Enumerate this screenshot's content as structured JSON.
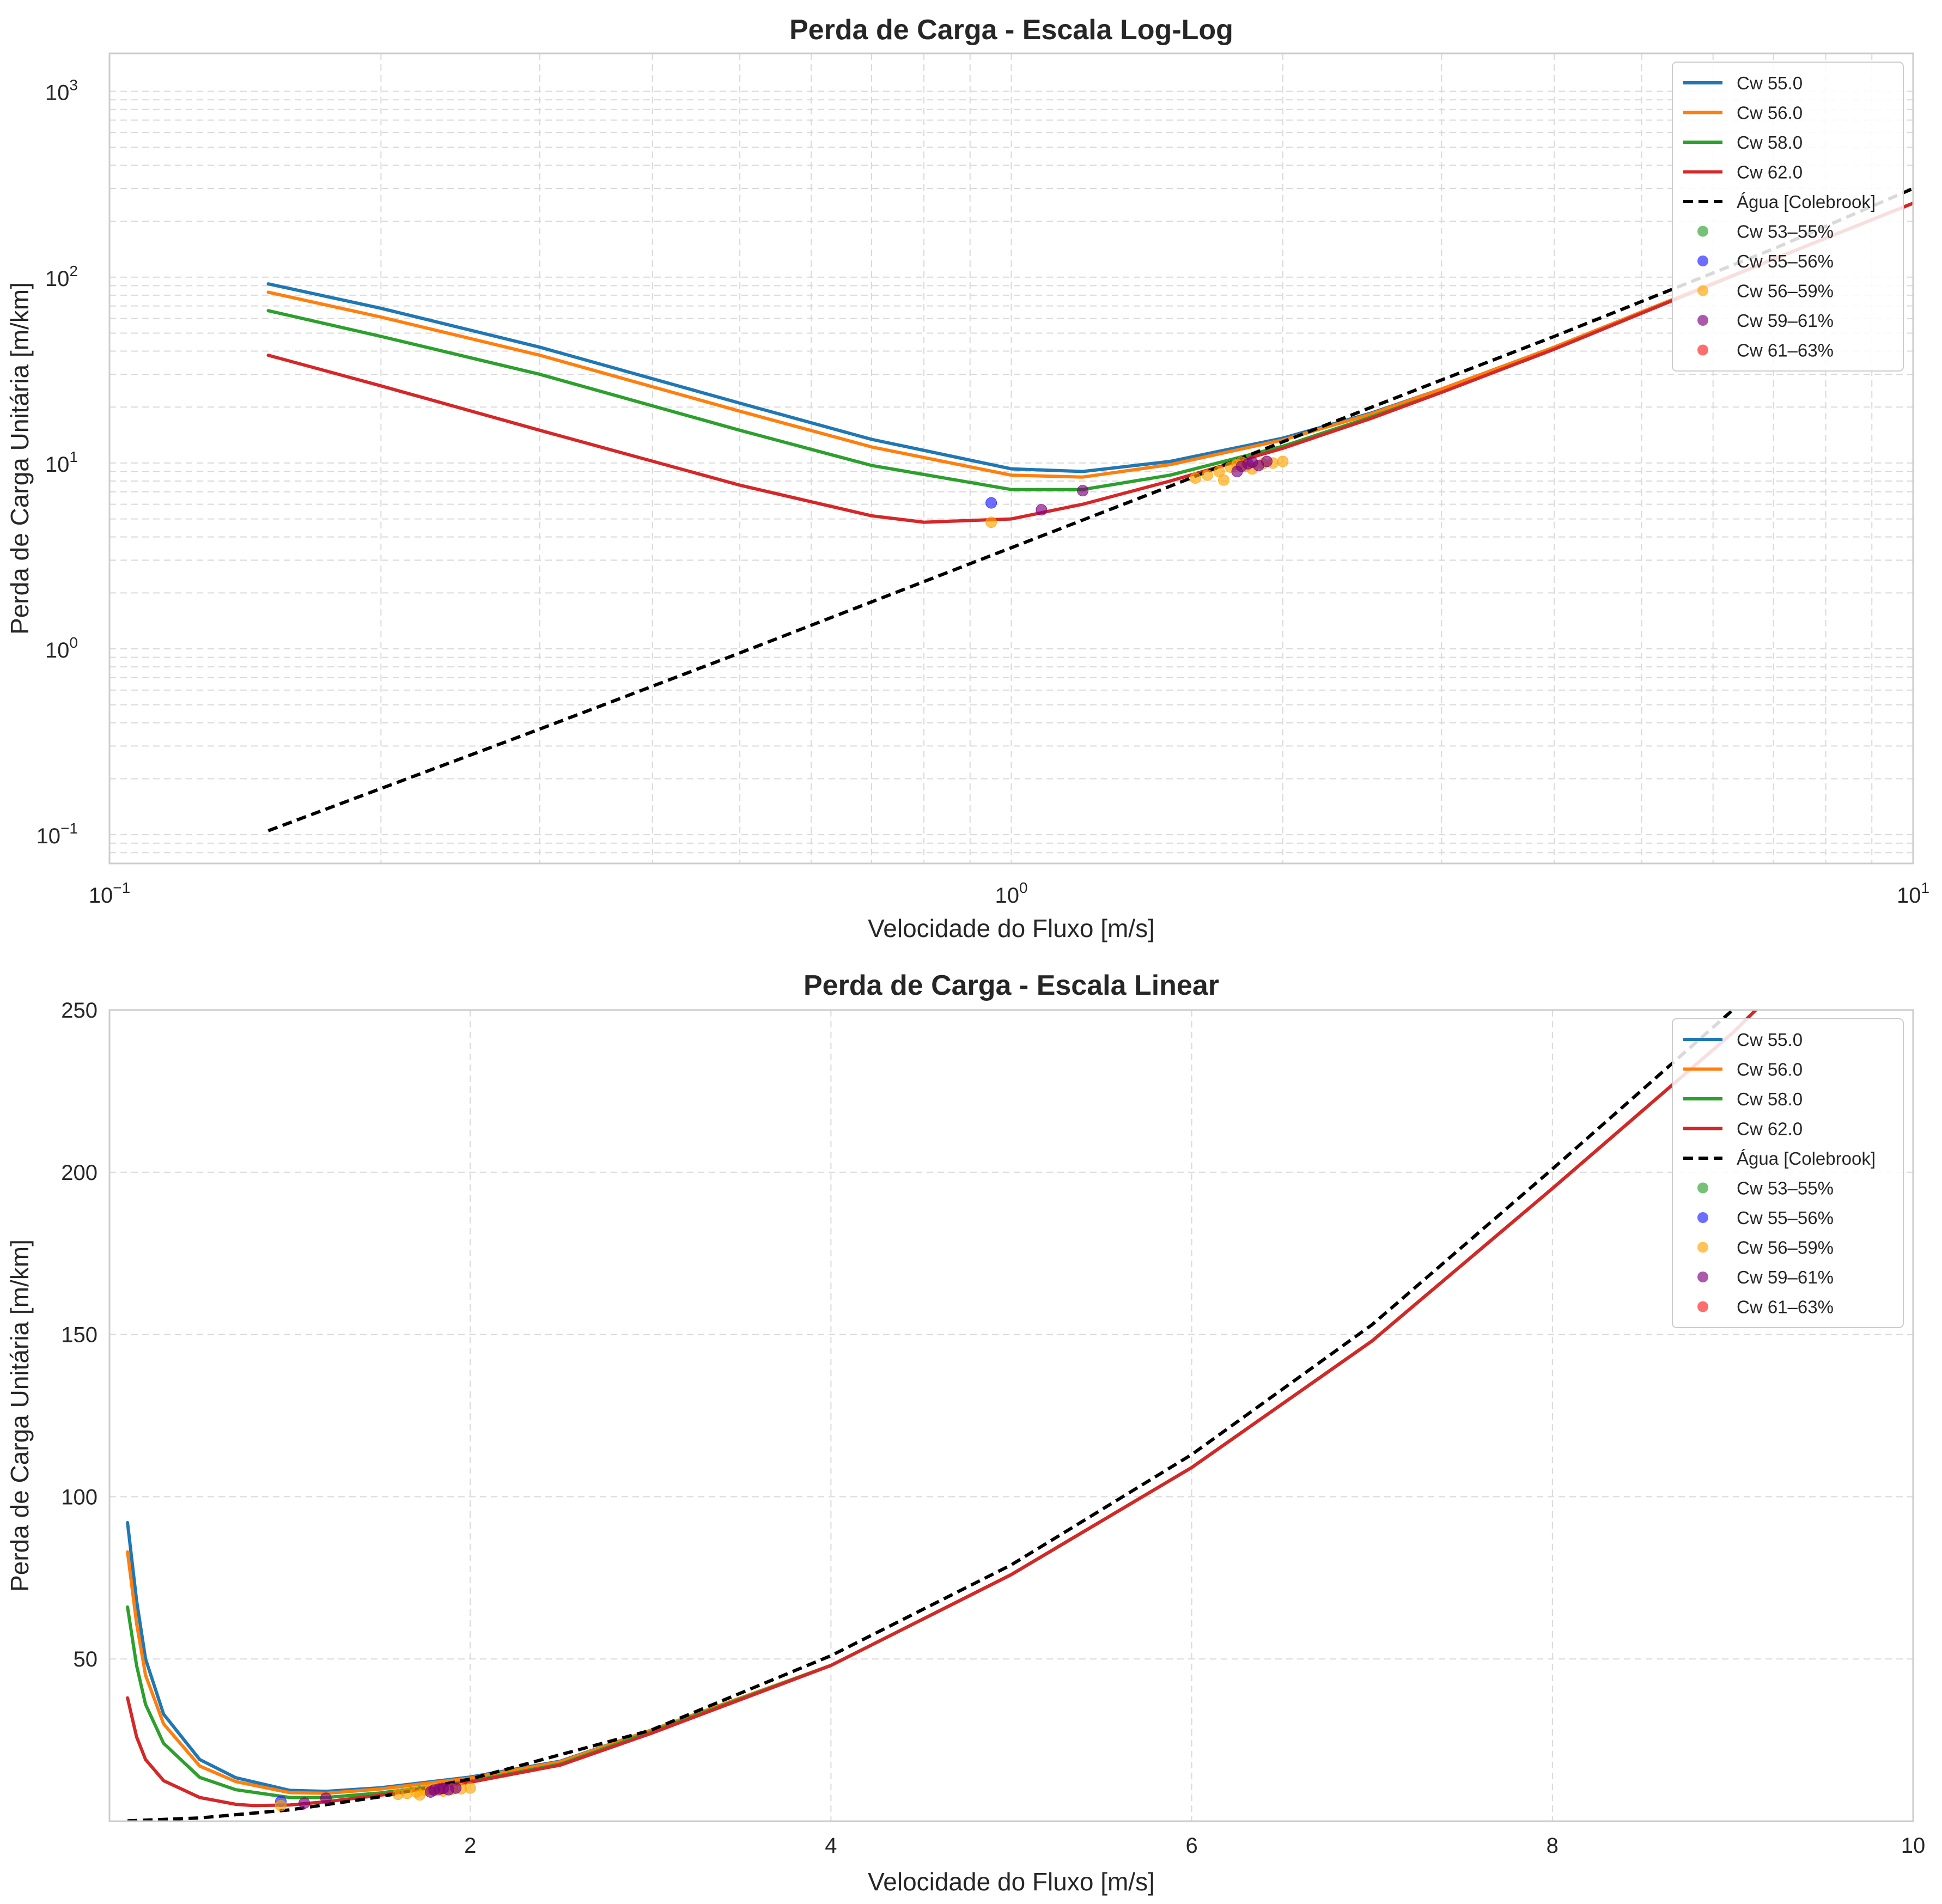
{
  "chart_data": [
    {
      "type": "line",
      "title": "Perda de Carga - Escala Log-Log",
      "xlabel": "Velocidade do Fluxo [m/s]",
      "ylabel": "Perda de Carga Unitária [m/km]",
      "xscale": "log",
      "yscale": "log",
      "xlim": [
        0.1,
        10
      ],
      "ylim": [
        0.07,
        1600
      ],
      "grid": true,
      "legend_position": "top-right",
      "x_ticks": [
        {
          "value": 0.1,
          "base": "10",
          "exp": "−1"
        },
        {
          "value": 1,
          "base": "10",
          "exp": "0"
        },
        {
          "value": 10,
          "base": "10",
          "exp": "1"
        }
      ],
      "y_ticks": [
        {
          "value": 0.1,
          "base": "10",
          "exp": "−1"
        },
        {
          "value": 1,
          "base": "10",
          "exp": "0"
        },
        {
          "value": 10,
          "base": "10",
          "exp": "1"
        },
        {
          "value": 100,
          "base": "10",
          "exp": "2"
        },
        {
          "value": 1000,
          "base": "10",
          "exp": "3"
        }
      ],
      "series": [
        {
          "name": "Cw 55.0",
          "color": "#1f77b4",
          "style": "solid",
          "x": [
            0.15,
            0.2,
            0.3,
            0.5,
            0.7,
            1.0,
            1.2,
            1.5,
            2.0,
            2.5,
            3,
            4,
            5,
            7,
            10
          ],
          "y": [
            92,
            68,
            42,
            21,
            13.4,
            9.3,
            9.0,
            10.2,
            13.6,
            18.5,
            25,
            42,
            65,
            125,
            250
          ]
        },
        {
          "name": "Cw 56.0",
          "color": "#ff7f0e",
          "style": "solid",
          "x": [
            0.15,
            0.2,
            0.3,
            0.5,
            0.7,
            1.0,
            1.2,
            1.5,
            2.0,
            2.5,
            3,
            4,
            5,
            7,
            10
          ],
          "y": [
            83,
            61,
            38,
            19,
            12.2,
            8.6,
            8.4,
            9.8,
            13.3,
            18.3,
            25,
            42,
            65,
            125,
            250
          ]
        },
        {
          "name": "Cw 58.0",
          "color": "#2ca02c",
          "style": "solid",
          "x": [
            0.15,
            0.2,
            0.3,
            0.5,
            0.7,
            1.0,
            1.2,
            1.5,
            2.0,
            2.5,
            3,
            4,
            5,
            7,
            10
          ],
          "y": [
            66,
            48,
            30,
            15,
            9.7,
            7.2,
            7.2,
            8.6,
            12.3,
            17.6,
            24,
            41,
            64,
            125,
            250
          ]
        },
        {
          "name": "Cw 62.0",
          "color": "#d62728",
          "style": "solid",
          "x": [
            0.15,
            0.2,
            0.3,
            0.5,
            0.7,
            0.8,
            1.0,
            1.2,
            1.5,
            2.0,
            2.5,
            3,
            4,
            5,
            7,
            10
          ],
          "y": [
            38,
            26,
            15,
            7.6,
            5.2,
            4.8,
            5.0,
            6.0,
            8.0,
            12.0,
            17.3,
            24,
            41,
            64,
            125,
            250
          ]
        },
        {
          "name": "Água [Colebrook]",
          "color": "#000000",
          "style": "dashed",
          "x": [
            0.15,
            0.3,
            0.5,
            1.0,
            1.5,
            2.0,
            3,
            4,
            5,
            7,
            10
          ],
          "y": [
            0.105,
            0.37,
            0.95,
            3.5,
            7.5,
            13,
            28,
            48,
            74,
            142,
            300
          ]
        }
      ],
      "scatter_series": [
        {
          "name": "Cw 53–55%",
          "color": "#2ca02c",
          "x": [],
          "y": []
        },
        {
          "name": "Cw 55–56%",
          "color": "#1f1fff",
          "x": [
            0.95
          ],
          "y": [
            6.1
          ]
        },
        {
          "name": "Cw 56–59%",
          "color": "#ffa500",
          "x": [
            0.95,
            1.6,
            1.65,
            1.7,
            1.72,
            1.75,
            1.78,
            1.8,
            1.82,
            1.85,
            1.9,
            1.95,
            2.0
          ],
          "y": [
            4.8,
            8.3,
            8.6,
            9.0,
            8.1,
            9.5,
            9.8,
            10.1,
            9.6,
            9.3,
            9.9,
            10.0,
            10.2
          ]
        },
        {
          "name": "Cw 59–61%",
          "color": "#800080",
          "x": [
            1.08,
            1.2,
            1.78,
            1.8,
            1.83,
            1.85,
            1.88,
            1.92
          ],
          "y": [
            5.6,
            7.1,
            9.0,
            9.6,
            9.9,
            10.1,
            9.7,
            10.2
          ]
        },
        {
          "name": "Cw 61–63%",
          "color": "#ff2020",
          "x": [],
          "y": []
        }
      ]
    },
    {
      "type": "line",
      "title": "Perda de Carga - Escala Linear",
      "xlabel": "Velocidade do Fluxo [m/s]",
      "ylabel": "Perda de Carga Unitária [m/km]",
      "xscale": "linear",
      "yscale": "linear",
      "xlim": [
        0,
        10
      ],
      "ylim": [
        0,
        250
      ],
      "grid": true,
      "legend_position": "top-right",
      "x_ticks": [
        {
          "value": 2,
          "label": "2"
        },
        {
          "value": 4,
          "label": "4"
        },
        {
          "value": 6,
          "label": "6"
        },
        {
          "value": 8,
          "label": "8"
        },
        {
          "value": 10,
          "label": "10"
        }
      ],
      "y_ticks": [
        {
          "value": 50,
          "label": "50"
        },
        {
          "value": 100,
          "label": "100"
        },
        {
          "value": 150,
          "label": "150"
        },
        {
          "value": 200,
          "label": "200"
        },
        {
          "value": 250,
          "label": "250"
        }
      ],
      "series": [
        {
          "name": "Cw 55.0",
          "color": "#1f77b4",
          "style": "solid",
          "x": [
            0.1,
            0.15,
            0.2,
            0.3,
            0.5,
            0.7,
            1.0,
            1.2,
            1.5,
            2.0,
            2.5,
            3,
            4,
            5,
            6,
            7,
            8,
            9,
            9.2
          ],
          "y": [
            92,
            68,
            50,
            33,
            19,
            13.4,
            9.5,
            9.2,
            10.3,
            13.6,
            18.5,
            28,
            48,
            76,
            109,
            148,
            195,
            243,
            254
          ]
        },
        {
          "name": "Cw 56.0",
          "color": "#ff7f0e",
          "style": "solid",
          "x": [
            0.1,
            0.15,
            0.2,
            0.3,
            0.5,
            0.7,
            1.0,
            1.2,
            1.5,
            2.0,
            2.5,
            3,
            4,
            5,
            6,
            7,
            8,
            9,
            9.2
          ],
          "y": [
            83,
            61,
            45,
            30,
            17,
            12.2,
            8.8,
            8.6,
            9.9,
            13.3,
            18.3,
            28,
            48,
            76,
            109,
            148,
            195,
            243,
            254
          ]
        },
        {
          "name": "Cw 58.0",
          "color": "#2ca02c",
          "style": "solid",
          "x": [
            0.1,
            0.15,
            0.2,
            0.3,
            0.5,
            0.7,
            1.0,
            1.2,
            1.5,
            2.0,
            2.5,
            3,
            4,
            5,
            6,
            7,
            8,
            9,
            9.2
          ],
          "y": [
            66,
            48,
            36,
            24,
            13.5,
            9.7,
            7.3,
            7.3,
            8.7,
            12.3,
            17.6,
            27.5,
            48,
            76,
            109,
            148,
            195,
            243,
            254
          ]
        },
        {
          "name": "Cw 62.0",
          "color": "#d62728",
          "style": "solid",
          "x": [
            0.1,
            0.15,
            0.2,
            0.3,
            0.5,
            0.7,
            0.8,
            1.0,
            1.2,
            1.5,
            2.0,
            2.5,
            3,
            4,
            5,
            6,
            7,
            8,
            9,
            9.2
          ],
          "y": [
            38,
            26,
            19,
            12.5,
            7.3,
            5.2,
            4.8,
            5.0,
            6.0,
            8.0,
            12.0,
            17.3,
            27,
            48,
            76,
            109,
            148,
            195,
            243,
            254
          ]
        },
        {
          "name": "Água [Colebrook]",
          "color": "#000000",
          "style": "dashed",
          "x": [
            0.1,
            0.5,
            1.0,
            1.5,
            2.0,
            3,
            4,
            5,
            6,
            7,
            8,
            9,
            9.1
          ],
          "y": [
            0.1,
            1.0,
            3.5,
            7.5,
            13,
            28,
            51,
            79,
            113,
            153,
            201,
            250,
            256
          ]
        }
      ],
      "scatter_series": [
        {
          "name": "Cw 53–55%",
          "color": "#2ca02c",
          "x": [],
          "y": []
        },
        {
          "name": "Cw 55–56%",
          "color": "#1f1fff",
          "x": [
            0.95
          ],
          "y": [
            6.1
          ]
        },
        {
          "name": "Cw 56–59%",
          "color": "#ffa500",
          "x": [
            0.95,
            1.6,
            1.65,
            1.7,
            1.72,
            1.75,
            1.78,
            1.8,
            1.82,
            1.85,
            1.9,
            1.95,
            2.0
          ],
          "y": [
            4.8,
            8.3,
            8.6,
            9.0,
            8.1,
            9.5,
            9.8,
            10.1,
            9.6,
            9.3,
            9.9,
            10.0,
            10.2
          ]
        },
        {
          "name": "Cw 59–61%",
          "color": "#800080",
          "x": [
            1.08,
            1.2,
            1.78,
            1.8,
            1.83,
            1.85,
            1.88,
            1.92
          ],
          "y": [
            5.6,
            7.1,
            9.0,
            9.6,
            9.9,
            10.1,
            9.7,
            10.2
          ]
        },
        {
          "name": "Cw 61–63%",
          "color": "#ff2020",
          "x": [],
          "y": []
        }
      ]
    }
  ]
}
